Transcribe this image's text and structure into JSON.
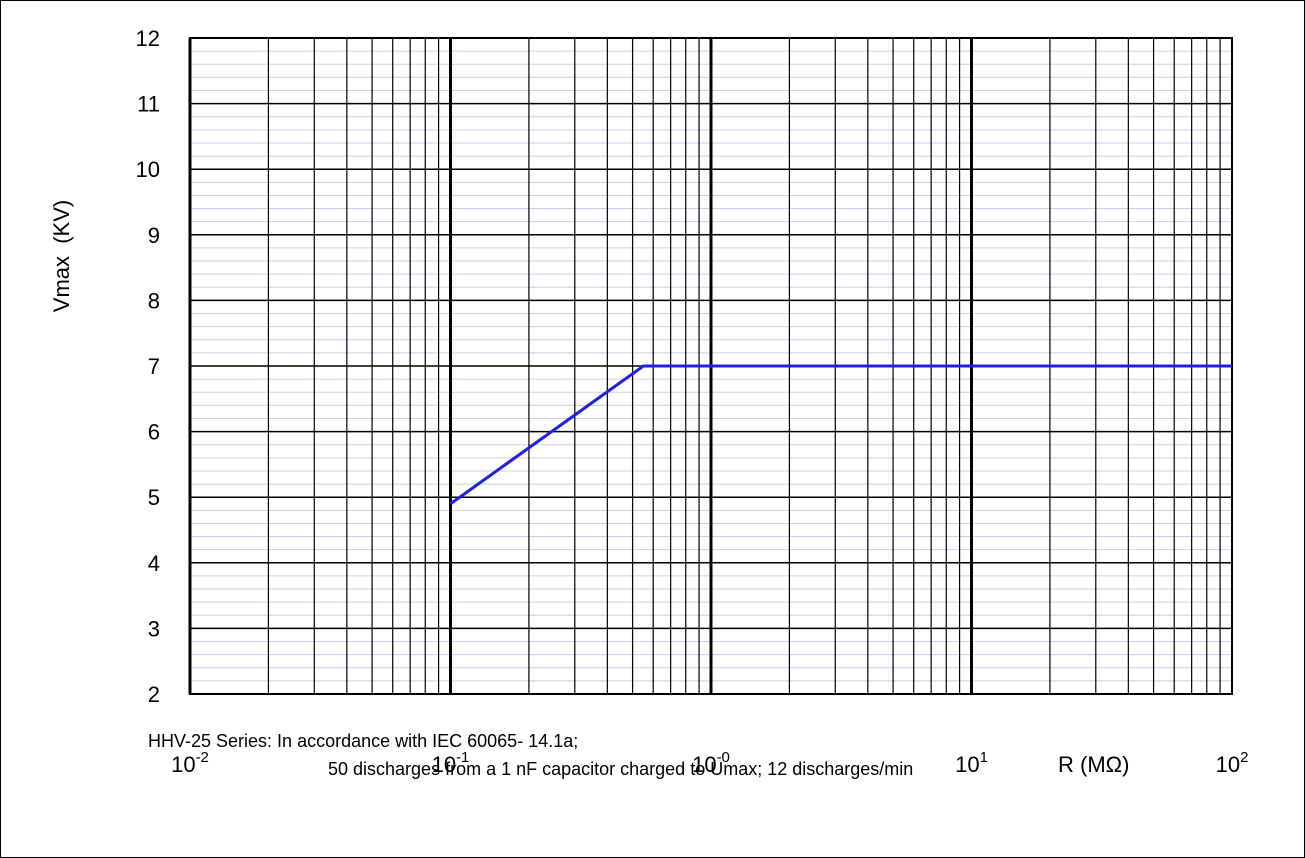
{
  "chart_data": {
    "type": "line",
    "title": "",
    "xlabel": "R (MΩ)",
    "ylabel": "Vmax  (KV)",
    "x_scale": "log",
    "xlim": [
      0.01,
      100
    ],
    "ylim": [
      2,
      12
    ],
    "y_ticks": [
      "2",
      "3",
      "4",
      "5",
      "6",
      "7",
      "8",
      "9",
      "10",
      "11",
      "12"
    ],
    "x_ticks": [
      {
        "value": 0.01,
        "base": "10",
        "exp": "-2"
      },
      {
        "value": 0.1,
        "base": "10",
        "exp": "-1"
      },
      {
        "value": 1,
        "base": "10",
        "exp": "-0"
      },
      {
        "value": 10,
        "base": "10",
        "exp": "1"
      },
      {
        "value": 100,
        "base": "10",
        "exp": "2"
      }
    ],
    "grid": true,
    "series": [
      {
        "color": "#1f1fe6",
        "x": [
          0.1,
          0.55,
          100
        ],
        "y": [
          4.9,
          7.0,
          7.0
        ]
      }
    ]
  },
  "notes": {
    "line1": "HHV-25 Series: In accordance with IEC 60065- 14.1a;",
    "line2": "50 discharges from a 1 nF capacitor charged to Umax; 12 discharges/min"
  }
}
